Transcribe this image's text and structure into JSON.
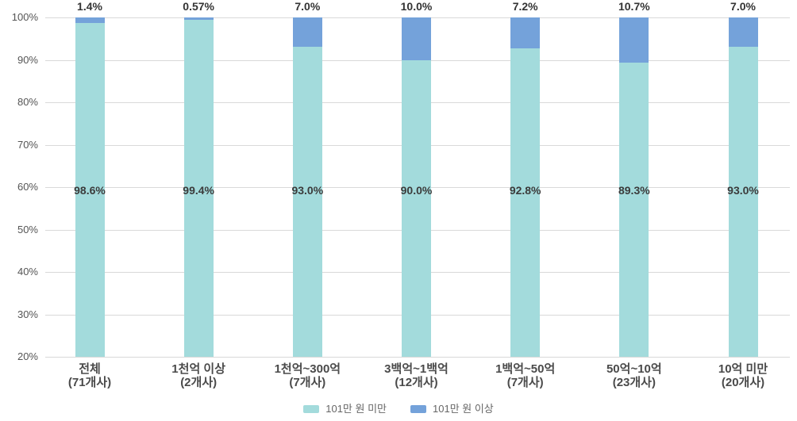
{
  "chart_data": {
    "type": "bar",
    "subtype": "stacked-percent-column",
    "title": "",
    "xlabel": "",
    "ylabel": "",
    "ylim": [
      20,
      100
    ],
    "grid": "horizontal",
    "legend_position": "bottom-center",
    "ytick_labels": [
      "100%",
      "90%",
      "80%",
      "70%",
      "60%",
      "50%",
      "40%",
      "30%",
      "20%"
    ],
    "categories": [
      "전체",
      "1천억 이상",
      "1천억~300억",
      "3백억~1백억",
      "1백억~50억",
      "50억~10억",
      "10억 미만"
    ],
    "category_counts": [
      "(71개사)",
      "(2개사)",
      "(7개사)",
      "(12개사)",
      "(7개사)",
      "(23개사)",
      "(20개사)"
    ],
    "series": [
      {
        "name": "101만 원 미만",
        "color": "#a3dbdc",
        "values": [
          98.6,
          99.4,
          93.0,
          90.0,
          92.8,
          89.3,
          93.0
        ],
        "labels": [
          "98.6%",
          "99.4%",
          "93.0%",
          "90.0%",
          "92.8%",
          "89.3%",
          "93.0%"
        ]
      },
      {
        "name": "101만 원 이상",
        "color": "#74a2da",
        "values": [
          1.4,
          0.57,
          7.0,
          10.0,
          7.2,
          10.7,
          7.0
        ],
        "labels": [
          "1.4%",
          "0.57%",
          "7.0%",
          "10.0%",
          "7.2%",
          "10.7%",
          "7.0%"
        ]
      }
    ],
    "colors": {
      "gridline": "#d9d9d9",
      "tick_text": "#555555",
      "label_text": "#3b3b3b",
      "category_text": "#4a4a4a"
    }
  }
}
